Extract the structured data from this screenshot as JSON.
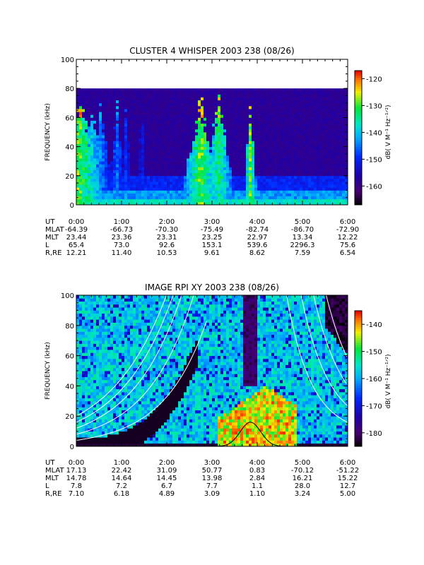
{
  "chart_data": [
    {
      "type": "heatmap",
      "title": "CLUSTER 4 WHISPER 2003 238 (08/26)",
      "ylabel": "FREQUENCY (kHz)",
      "ylim": [
        0,
        100
      ],
      "yticks": [
        "0",
        "20",
        "40",
        "60",
        "80",
        "100"
      ],
      "colorbar": {
        "label": "dB( V M⁻¹ Hz⁻¹ᐟ²)",
        "range": [
          -167,
          -117
        ],
        "ticks": [
          "-120",
          "-130",
          "-140",
          "-150",
          "-160"
        ]
      },
      "data_max_frequency_khz": 80,
      "times": [
        "0:00",
        "1:00",
        "2:00",
        "3:00",
        "4:00",
        "5:00",
        "6:00"
      ],
      "ephemeris": [
        {
          "label": "UT",
          "values": [
            "0:00",
            "1:00",
            "2:00",
            "3:00",
            "4:00",
            "5:00",
            "6:00"
          ]
        },
        {
          "label": "MLAT",
          "values": [
            "-64.39",
            "-66.73",
            "-70.30",
            "-75.49",
            "-82.74",
            "-86.70",
            "-72.90"
          ]
        },
        {
          "label": "MLT",
          "values": [
            "23.44",
            "23.36",
            "23.31",
            "23.25",
            "22.97",
            "13.34",
            "12.22"
          ]
        },
        {
          "label": "L",
          "values": [
            "65.4",
            "73.0",
            "92.6",
            "153.1",
            "539.6",
            "2296.3",
            "75.6"
          ]
        },
        {
          "label": "R,RE",
          "values": [
            "12.21",
            "11.40",
            "10.53",
            "9.61",
            "8.62",
            "7.59",
            "6.54"
          ]
        }
      ]
    },
    {
      "type": "heatmap",
      "title": "IMAGE RPI XY 2003 238 (08/26)",
      "ylabel": "FREQUENCY (kHz)",
      "ylim": [
        0,
        100
      ],
      "yticks": [
        "0",
        "20",
        "40",
        "60",
        "80",
        "100"
      ],
      "colorbar": {
        "label": "dB( V M⁻¹ Hz⁻¹ᐟ²)",
        "range": [
          -185,
          -135
        ],
        "ticks": [
          "-140",
          "-150",
          "-160",
          "-170",
          "-180"
        ]
      },
      "times": [
        "0:00",
        "1:00",
        "2:00",
        "3:00",
        "4:00",
        "5:00",
        "6:00"
      ],
      "ephemeris": [
        {
          "label": "UT",
          "values": [
            "0:00",
            "1:00",
            "2:00",
            "3:00",
            "4:00",
            "5:00",
            "6:00"
          ]
        },
        {
          "label": "MLAT",
          "values": [
            "17.13",
            "22.42",
            "31.09",
            "50.77",
            "0.83",
            "-70.12",
            "-51.22"
          ]
        },
        {
          "label": "MLT",
          "values": [
            "14.78",
            "14.64",
            "14.45",
            "13.98",
            "2.84",
            "16.21",
            "15.22"
          ]
        },
        {
          "label": "L",
          "values": [
            "7.8",
            "7.2",
            "6.7",
            "7.7",
            "1.1",
            "28.0",
            "12.7"
          ]
        },
        {
          "label": "R,RE",
          "values": [
            "7.10",
            "6.18",
            "4.89",
            "3.09",
            "1.10",
            "3.24",
            "5.00"
          ]
        }
      ]
    }
  ]
}
